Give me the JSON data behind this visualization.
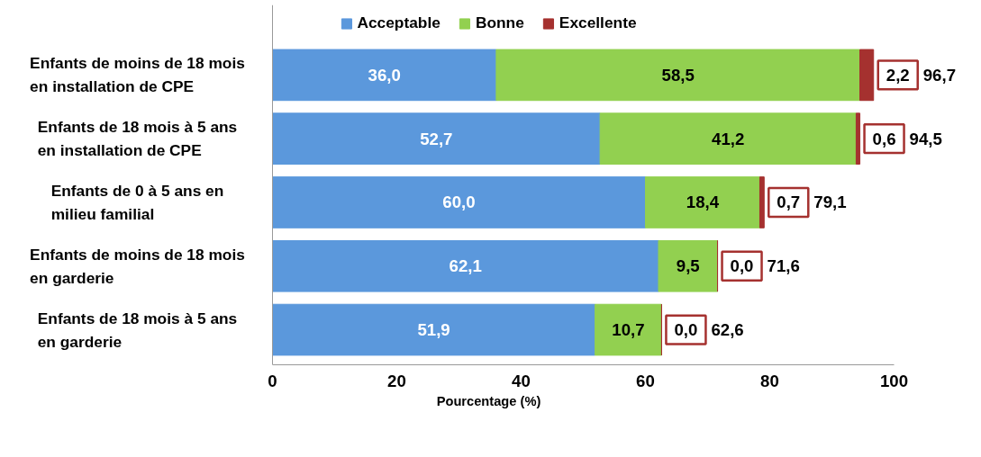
{
  "chart_data": {
    "type": "bar",
    "orientation": "horizontal",
    "stacked": true,
    "xlabel": "Pourcentage (%)",
    "categories": [
      "Enfants de moins de 18 mois en installation de CPE",
      "Enfants de 18 mois à 5 ans en installation de CPE",
      "Enfants de 0 à 5 ans en milieu familial",
      "Enfants de moins de 18 mois en garderie",
      "Enfants de 18 mois à 5 ans en garderie"
    ],
    "series": [
      {
        "name": "Acceptable",
        "color": "#5b98dc",
        "values": [
          36.0,
          52.7,
          60.0,
          62.1,
          51.9
        ],
        "value_labels": [
          "36,0",
          "52,7",
          "60,0",
          "62,1",
          "51,9"
        ]
      },
      {
        "name": "Bonne",
        "color": "#92d050",
        "values": [
          58.5,
          41.2,
          18.4,
          9.5,
          10.7
        ],
        "value_labels": [
          "58,5",
          "41,2",
          "18,4",
          "9,5",
          "10,7"
        ]
      },
      {
        "name": "Excellente",
        "color": "#a5312f",
        "values": [
          2.2,
          0.6,
          0.7,
          0.0,
          0.0
        ],
        "value_labels": [
          "2,2",
          "0,6",
          "0,7",
          "0,0",
          "0,0"
        ]
      }
    ],
    "totals": [
      "96,7",
      "94,5",
      "79,1",
      "71,6",
      "62,6"
    ],
    "xlim": [
      0,
      100
    ],
    "xticks": [
      0,
      20,
      40,
      60,
      80,
      100
    ],
    "grid": false,
    "legend": "top"
  }
}
